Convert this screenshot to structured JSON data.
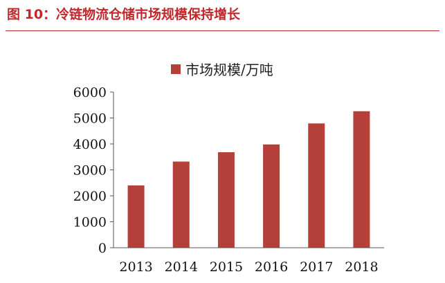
{
  "figure": {
    "title": "图 10：冷链物流仓储市场规模保持增长"
  },
  "chart_data": {
    "type": "bar",
    "title": "",
    "xlabel": "",
    "ylabel": "",
    "categories": [
      "2013",
      "2014",
      "2015",
      "2016",
      "2017",
      "2018"
    ],
    "series": [
      {
        "name": "市场规模/万吨",
        "values": [
          2400,
          3320,
          3680,
          3980,
          4790,
          5260
        ],
        "color": "#b5403a"
      }
    ],
    "ylim": [
      0,
      6000
    ],
    "yticks": [
      0,
      1000,
      2000,
      3000,
      4000,
      5000,
      6000
    ],
    "grid": false,
    "legend_position": "top-center"
  }
}
